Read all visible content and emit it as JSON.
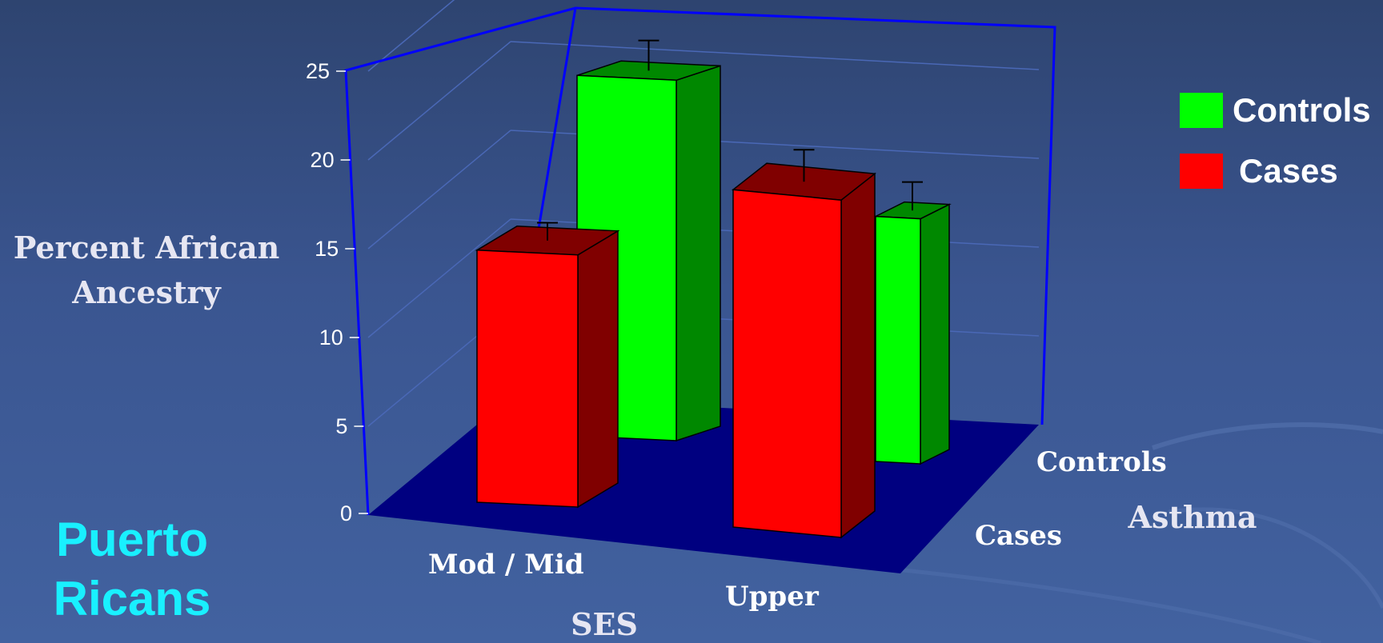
{
  "chart_data": {
    "type": "bar",
    "title": "",
    "ylabel": "Percent African\nAncestry",
    "xlabel": "SES",
    "zlabel": "Asthma",
    "ylim": [
      0,
      25
    ],
    "yticks": [
      "0",
      "5",
      "10",
      "15",
      "20",
      "25"
    ],
    "categories": [
      "Mod / Mid",
      "Upper"
    ],
    "series": [
      {
        "name": "Controls",
        "values": [
          20.3,
          13.8
        ],
        "error": [
          1.7,
          1.6
        ],
        "color": "#00ff00",
        "dark": "#008800"
      },
      {
        "name": "Cases",
        "values": [
          14.2,
          19.0
        ],
        "error": [
          1.0,
          1.8
        ],
        "color": "#ff0000",
        "dark": "#800000"
      }
    ],
    "series_axis_labels": [
      "Controls",
      "Cases"
    ],
    "legend_position": "top-right",
    "grid": true,
    "floor_color": "#000080",
    "frame_color": "#0000ff"
  },
  "region_label": "Puerto\nRicans"
}
